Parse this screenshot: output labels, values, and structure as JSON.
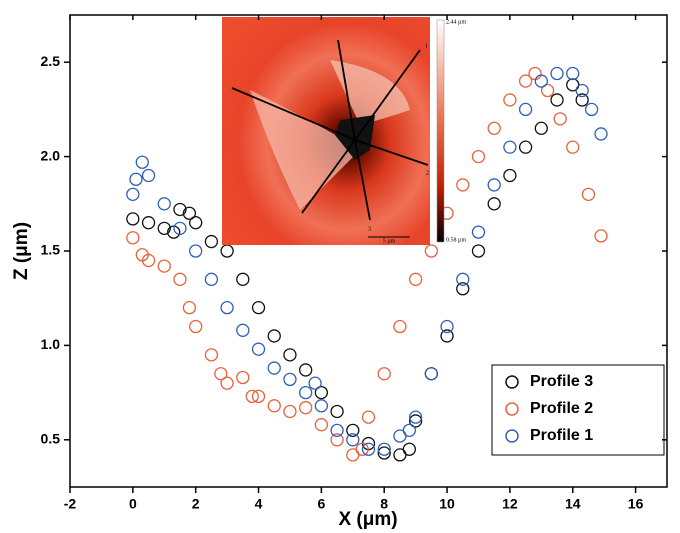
{
  "chart_data": {
    "type": "scatter",
    "x_label": "X (μm)",
    "y_label": "Z (μm)",
    "xlim": [
      -2,
      17
    ],
    "ylim": [
      0.25,
      2.75
    ],
    "xticks": [
      -2,
      0,
      2,
      4,
      6,
      8,
      10,
      12,
      14,
      16
    ],
    "yticks": [
      0.5,
      {
        "value": 1,
        "label": "1.0"
      },
      1.5,
      {
        "value": 2,
        "label": "2.0"
      },
      2.5
    ],
    "legend": "lower right",
    "series": [
      {
        "name": "Profile 3",
        "color": "#111111",
        "x": [
          0,
          0.5,
          1,
          1.3,
          1.5,
          1.8,
          2,
          2.5,
          3,
          3.5,
          4,
          4.5,
          5,
          5.5,
          6,
          6.5,
          7,
          7.5,
          8,
          8.5,
          8.8,
          9,
          9.5,
          10,
          10.5,
          11,
          11.5,
          12,
          12.5,
          13,
          13.5,
          14,
          14.3
        ],
        "values": [
          1.67,
          1.65,
          1.62,
          1.6,
          1.72,
          1.7,
          1.65,
          1.55,
          1.5,
          1.35,
          1.2,
          1.05,
          0.95,
          0.87,
          0.75,
          0.65,
          0.55,
          0.48,
          0.43,
          0.42,
          0.45,
          0.6,
          0.85,
          1.05,
          1.3,
          1.5,
          1.75,
          1.9,
          2.05,
          2.15,
          2.3,
          2.38,
          2.3
        ]
      },
      {
        "name": "Profile 2",
        "color": "#e8603c",
        "x": [
          0,
          0.3,
          0.5,
          1,
          1.5,
          1.8,
          2,
          2.5,
          2.8,
          3,
          3.5,
          3.8,
          4,
          4.5,
          5,
          5.5,
          6,
          6.5,
          7,
          7.3,
          7.5,
          8,
          8.5,
          9,
          9.5,
          10,
          10.5,
          11,
          11.5,
          12,
          12.5,
          12.8,
          13.2,
          13.6,
          14,
          14.5,
          14.9
        ],
        "values": [
          1.57,
          1.48,
          1.45,
          1.42,
          1.35,
          1.2,
          1.1,
          0.95,
          0.85,
          0.8,
          0.83,
          0.73,
          0.73,
          0.68,
          0.65,
          0.67,
          0.58,
          0.5,
          0.42,
          0.45,
          0.62,
          0.85,
          1.1,
          1.35,
          1.5,
          1.7,
          1.85,
          2,
          2.15,
          2.3,
          2.4,
          2.44,
          2.35,
          2.2,
          2.05,
          1.8,
          1.58
        ]
      },
      {
        "name": "Profile 1",
        "color": "#2e5fb5",
        "x": [
          0,
          0.1,
          0.3,
          0.5,
          1,
          1.5,
          2,
          2.5,
          3,
          3.5,
          4,
          4.5,
          5,
          5.5,
          5.8,
          6,
          6.5,
          7,
          7.5,
          8,
          8.5,
          8.8,
          9,
          9.5,
          10,
          10.5,
          11,
          11.5,
          12,
          12.5,
          13,
          13.5,
          14,
          14.3,
          14.6,
          14.9
        ],
        "values": [
          1.8,
          1.88,
          1.97,
          1.9,
          1.75,
          1.62,
          1.5,
          1.35,
          1.2,
          1.08,
          0.98,
          0.88,
          0.82,
          0.75,
          0.8,
          0.68,
          0.55,
          0.5,
          0.45,
          0.45,
          0.52,
          0.55,
          0.62,
          0.85,
          1.1,
          1.35,
          1.6,
          1.85,
          2.05,
          2.25,
          2.4,
          2.44,
          2.44,
          2.35,
          2.25,
          2.12
        ]
      }
    ],
    "inset": {
      "profile_labels": [
        "1",
        "2",
        "3"
      ],
      "scale_max": "2.44 µm",
      "scale_min": "0.58 µm",
      "scale_bar": "5 µm"
    }
  }
}
